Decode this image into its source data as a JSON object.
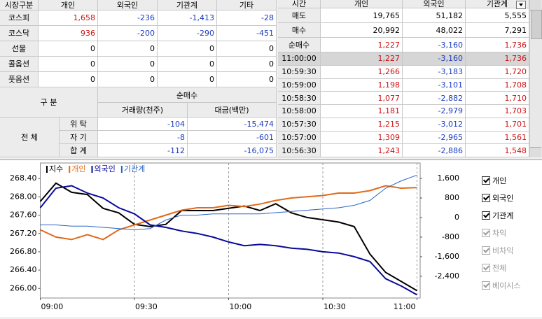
{
  "market_table": {
    "columns": [
      "시장구분",
      "개인",
      "외국인",
      "기관계",
      "기타"
    ],
    "rows": [
      [
        "코스피",
        "1,658",
        "-236",
        "-1,413",
        "-28"
      ],
      [
        "코스닥",
        "936",
        "-200",
        "-290",
        "-451"
      ],
      [
        "선물",
        "0",
        "0",
        "0",
        "0"
      ],
      [
        "콜옵션",
        "0",
        "0",
        "0",
        "0"
      ],
      [
        "풋옵션",
        "0",
        "0",
        "0",
        "0"
      ]
    ]
  },
  "program_table": {
    "corner": "구 분",
    "group": "순매수",
    "columns": [
      "거래량(천주)",
      "대금(백만)"
    ],
    "section": "전 체",
    "rows": [
      [
        "위 탁",
        "-104",
        "-15,474"
      ],
      [
        "자 기",
        "-8",
        "-601"
      ],
      [
        "합 계",
        "-112",
        "-16,075"
      ]
    ]
  },
  "trade_table": {
    "columns": [
      "시간",
      "개인",
      "외국인",
      "기관계"
    ],
    "summary": [
      [
        "매도",
        "19,765",
        "51,182",
        "5,555"
      ],
      [
        "매수",
        "20,992",
        "48,022",
        "7,291"
      ],
      [
        "순매수",
        "1,227",
        "-3,160",
        "1,736"
      ]
    ],
    "rows": [
      [
        "11:00:00",
        "1,227",
        "-3,160",
        "1,736"
      ],
      [
        "10:59:30",
        "1,266",
        "-3,183",
        "1,720"
      ],
      [
        "10:59:00",
        "1,198",
        "-3,101",
        "1,708"
      ],
      [
        "10:58:30",
        "1,077",
        "-2,882",
        "1,710"
      ],
      [
        "10:58:00",
        "1,181",
        "-2,979",
        "1,703"
      ],
      [
        "10:57:30",
        "1,215",
        "-3,012",
        "1,701"
      ],
      [
        "10:57:00",
        "1,309",
        "-2,965",
        "1,561"
      ],
      [
        "10:56:30",
        "1,243",
        "-2,886",
        "1,548"
      ]
    ]
  },
  "chart_data": {
    "type": "line",
    "x": [
      "09:00",
      "09:05",
      "09:10",
      "09:15",
      "09:20",
      "09:25",
      "09:30",
      "09:35",
      "09:40",
      "09:45",
      "09:50",
      "09:55",
      "10:00",
      "10:05",
      "10:10",
      "10:15",
      "10:20",
      "10:25",
      "10:30",
      "10:35",
      "10:40",
      "10:45",
      "10:50",
      "10:55",
      "11:00"
    ],
    "xticks": [
      "09:00",
      "09:30",
      "10:00",
      "10:30",
      "11:00"
    ],
    "ylim": [
      265.79,
      268.74
    ],
    "yticks": [
      {
        "value": 268.4,
        "label": "268.40"
      },
      {
        "value": 268,
        "label": "268.00"
      },
      {
        "value": 267.6,
        "label": "267.60"
      },
      {
        "value": 267.2,
        "label": "267.20"
      },
      {
        "value": 266.8,
        "label": "266.80"
      },
      {
        "value": 266.4,
        "label": "266.40"
      },
      {
        "value": 266,
        "label": "266.00"
      }
    ],
    "y2lim": [
      -3290,
      2230
    ],
    "y2ticks": [
      {
        "value": 1600,
        "label": "1,600"
      },
      800,
      0,
      -800,
      {
        "value": -1600,
        "label": "-1,600"
      },
      {
        "value": -2400,
        "label": "-2,400"
      }
    ],
    "grid": true,
    "series": [
      {
        "name": "지수",
        "color": "#000000",
        "axis": "y",
        "values": [
          267.9,
          268.3,
          268.1,
          268.05,
          267.75,
          267.65,
          267.4,
          267.35,
          267.4,
          267.7,
          267.7,
          267.7,
          267.75,
          267.8,
          267.7,
          267.85,
          267.65,
          267.55,
          267.5,
          267.45,
          267.35,
          266.75,
          266.35,
          266.15,
          265.95
        ]
      },
      {
        "name": "개인",
        "color": "#e06a1a",
        "axis": "y2",
        "values": [
          -500,
          -800,
          -900,
          -700,
          -900,
          -500,
          -300,
          -100,
          100,
          300,
          400,
          400,
          500,
          450,
          550,
          700,
          800,
          850,
          900,
          1000,
          1000,
          1100,
          1300,
          1200,
          1227
        ]
      },
      {
        "name": "외국인",
        "color": "#0a0a9a",
        "axis": "y2",
        "values": [
          400,
          1200,
          1300,
          1000,
          800,
          400,
          150,
          -300,
          -400,
          -550,
          -650,
          -800,
          -1000,
          -1150,
          -1100,
          -1150,
          -1250,
          -1300,
          -1400,
          -1450,
          -1600,
          -1800,
          -2500,
          -2800,
          -3160
        ]
      },
      {
        "name": "기관계",
        "color": "#2a64c4",
        "axis": "y2",
        "values": [
          -300,
          -300,
          -350,
          -350,
          -400,
          -450,
          -500,
          -450,
          -100,
          100,
          100,
          150,
          150,
          150,
          150,
          200,
          250,
          300,
          350,
          400,
          500,
          700,
          1200,
          1500,
          1736
        ]
      }
    ]
  },
  "options": [
    {
      "label": "개인",
      "checked": true,
      "enabled": true
    },
    {
      "label": "외국인",
      "checked": true,
      "enabled": true
    },
    {
      "label": "기관계",
      "checked": true,
      "enabled": true
    },
    {
      "label": "차익",
      "checked": true,
      "enabled": false
    },
    {
      "label": "비차익",
      "checked": true,
      "enabled": false
    },
    {
      "label": "전체",
      "checked": true,
      "enabled": false
    },
    {
      "label": "베이시스",
      "checked": true,
      "enabled": false
    }
  ]
}
